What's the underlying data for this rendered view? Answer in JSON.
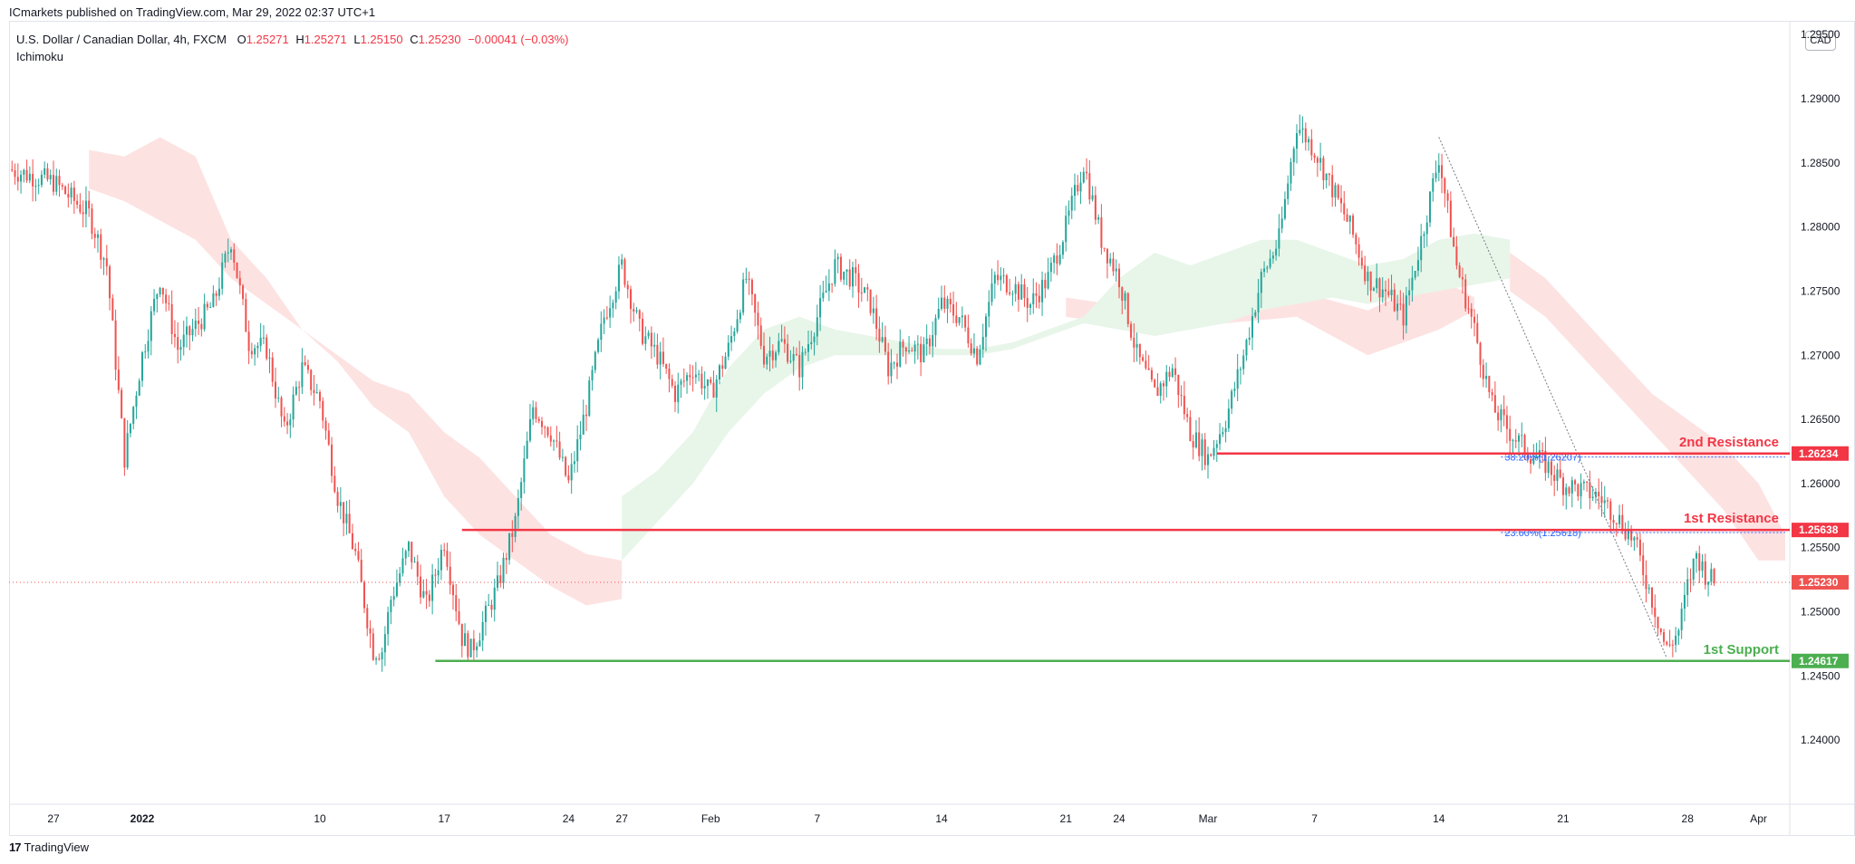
{
  "header": {
    "publisher": "ICmarkets published on TradingView.com, Mar 29, 2022 02:37 UTC+1",
    "symbol": "U.S. Dollar / Canadian Dollar, 4h, FXCM",
    "open_label": "O",
    "open": "1.25271",
    "high_label": "H",
    "high": "1.25271",
    "low_label": "L",
    "low": "1.25150",
    "close_label": "C",
    "close": "1.25230",
    "change": "−0.00041 (−0.03%)",
    "indicator": "Ichimoku",
    "currency": "CAD"
  },
  "footer": {
    "brand": "TradingView",
    "logo_glyph": "17"
  },
  "colors": {
    "bull": "#26a69a",
    "bear": "#ef5350",
    "resistance": "#f23645",
    "support": "#4caf50",
    "fib": "#2962ff",
    "cloud_bear": "#fde2e2",
    "cloud_bull": "#e8f5e9"
  },
  "chart_data": {
    "type": "candlestick",
    "title": "U.S. Dollar / Canadian Dollar, 4h, FXCM",
    "ylim": [
      1.235,
      1.296
    ],
    "y_ticks": [
      "1.24000",
      "1.24500",
      "1.25000",
      "1.25500",
      "1.26000",
      "1.26500",
      "1.27000",
      "1.27500",
      "1.28000",
      "1.28500",
      "1.29000",
      "1.29500"
    ],
    "x_ticks": [
      {
        "label": "27",
        "day": -8
      },
      {
        "label": "2022",
        "day": -3
      },
      {
        "label": "10",
        "day": 7
      },
      {
        "label": "17",
        "day": 14
      },
      {
        "label": "24",
        "day": 21
      },
      {
        "label": "27",
        "day": 24
      },
      {
        "label": "Feb",
        "day": 29
      },
      {
        "label": "7",
        "day": 35
      },
      {
        "label": "14",
        "day": 42
      },
      {
        "label": "21",
        "day": 49
      },
      {
        "label": "24",
        "day": 52
      },
      {
        "label": "Mar",
        "day": 57
      },
      {
        "label": "7",
        "day": 63
      },
      {
        "label": "14",
        "day": 70
      },
      {
        "label": "21",
        "day": 77
      },
      {
        "label": "28",
        "day": 84
      },
      {
        "label": "Apr",
        "day": 88
      }
    ],
    "x_axis_day_range": [
      -10.5,
      89.5
    ],
    "price_path_keypoints": [
      [
        -10.5,
        1.2845
      ],
      [
        -8,
        1.2835
      ],
      [
        -6,
        1.281
      ],
      [
        -5,
        1.277
      ],
      [
        -4,
        1.262
      ],
      [
        -3,
        1.27
      ],
      [
        -2,
        1.276
      ],
      [
        -1,
        1.2705
      ],
      [
        1,
        1.274
      ],
      [
        2,
        1.279
      ],
      [
        3,
        1.271
      ],
      [
        4,
        1.2705
      ],
      [
        5,
        1.264
      ],
      [
        6,
        1.269
      ],
      [
        7,
        1.2665
      ],
      [
        8,
        1.259
      ],
      [
        9,
        1.2545
      ],
      [
        10,
        1.247
      ],
      [
        10.5,
        1.247
      ],
      [
        11,
        1.251
      ],
      [
        12,
        1.255
      ],
      [
        13,
        1.2505
      ],
      [
        14,
        1.2555
      ],
      [
        15,
        1.248
      ],
      [
        15.5,
        1.247
      ],
      [
        16,
        1.2485
      ],
      [
        17,
        1.252
      ],
      [
        18,
        1.257
      ],
      [
        19,
        1.266
      ],
      [
        20,
        1.264
      ],
      [
        21,
        1.26
      ],
      [
        22,
        1.266
      ],
      [
        23,
        1.273
      ],
      [
        24,
        1.277
      ],
      [
        25,
        1.272
      ],
      [
        26,
        1.27
      ],
      [
        27,
        1.267
      ],
      [
        28,
        1.269
      ],
      [
        29,
        1.267
      ],
      [
        30,
        1.2705
      ],
      [
        31,
        1.276
      ],
      [
        32,
        1.27
      ],
      [
        33,
        1.271
      ],
      [
        34,
        1.269
      ],
      [
        35,
        1.273
      ],
      [
        36,
        1.277
      ],
      [
        37,
        1.276
      ],
      [
        38,
        1.274
      ],
      [
        39,
        1.269
      ],
      [
        40,
        1.271
      ],
      [
        41,
        1.27
      ],
      [
        42,
        1.274
      ],
      [
        43,
        1.273
      ],
      [
        44,
        1.27
      ],
      [
        45,
        1.276
      ],
      [
        46,
        1.2755
      ],
      [
        47,
        1.274
      ],
      [
        48,
        1.276
      ],
      [
        49,
        1.28
      ],
      [
        50,
        1.285
      ],
      [
        51,
        1.279
      ],
      [
        52,
        1.276
      ],
      [
        53,
        1.27
      ],
      [
        54,
        1.267
      ],
      [
        55,
        1.269
      ],
      [
        56,
        1.264
      ],
      [
        57,
        1.262
      ],
      [
        58,
        1.265
      ],
      [
        59,
        1.27
      ],
      [
        60,
        1.276
      ],
      [
        61,
        1.279
      ],
      [
        62,
        1.288
      ],
      [
        63,
        1.286
      ],
      [
        64,
        1.283
      ],
      [
        65,
        1.28
      ],
      [
        66,
        1.276
      ],
      [
        67,
        1.275
      ],
      [
        68,
        1.273
      ],
      [
        69,
        1.279
      ],
      [
        70,
        1.2855
      ],
      [
        71,
        1.277
      ],
      [
        72,
        1.272
      ],
      [
        73,
        1.266
      ],
      [
        74,
        1.264
      ],
      [
        75,
        1.2625
      ],
      [
        76,
        1.2615
      ],
      [
        77,
        1.26
      ],
      [
        78,
        1.2595
      ],
      [
        79,
        1.259
      ],
      [
        80,
        1.2575
      ],
      [
        81,
        1.2555
      ],
      [
        82,
        1.251
      ],
      [
        82.8,
        1.247
      ],
      [
        83.5,
        1.2485
      ],
      [
        84,
        1.252
      ],
      [
        84.5,
        1.2545
      ],
      [
        85,
        1.253
      ],
      [
        85.5,
        1.2523
      ]
    ],
    "ichimoku_cloud": {
      "bear_segments": [
        [
          [
            -6,
            1.286
          ],
          [
            -4,
            1.2855
          ],
          [
            -2,
            1.287
          ],
          [
            0,
            1.2855
          ],
          [
            2,
            1.279
          ],
          [
            4,
            1.276
          ],
          [
            6,
            1.272
          ],
          [
            8,
            1.27
          ],
          [
            10,
            1.268
          ],
          [
            12,
            1.267
          ],
          [
            14,
            1.264
          ],
          [
            16,
            1.262
          ],
          [
            18,
            1.259
          ],
          [
            20,
            1.256
          ],
          [
            22,
            1.2545
          ],
          [
            24,
            1.254
          ]
        ],
        [
          [
            -6,
            1.283
          ],
          [
            -4,
            1.282
          ],
          [
            -2,
            1.2805
          ],
          [
            0,
            1.279
          ],
          [
            2,
            1.276
          ],
          [
            4,
            1.274
          ],
          [
            6,
            1.272
          ],
          [
            8,
            1.2695
          ],
          [
            10,
            1.266
          ],
          [
            12,
            1.264
          ],
          [
            14,
            1.259
          ],
          [
            16,
            1.256
          ],
          [
            18,
            1.254
          ],
          [
            20,
            1.252
          ],
          [
            22,
            1.2505
          ],
          [
            24,
            1.251
          ]
        ],
        [
          [
            49,
            1.2745
          ],
          [
            54,
            1.2735
          ],
          [
            58,
            1.2745
          ],
          [
            62,
            1.275
          ],
          [
            66,
            1.2735
          ],
          [
            70,
            1.276
          ],
          [
            72,
            1.2745
          ]
        ],
        [
          [
            49,
            1.273
          ],
          [
            54,
            1.272
          ],
          [
            58,
            1.2725
          ],
          [
            62,
            1.273
          ],
          [
            66,
            1.27
          ],
          [
            70,
            1.272
          ],
          [
            72,
            1.2735
          ]
        ],
        [
          [
            74,
            1.278
          ],
          [
            76,
            1.276
          ],
          [
            78,
            1.273
          ],
          [
            80,
            1.27
          ],
          [
            82,
            1.267
          ],
          [
            84,
            1.265
          ],
          [
            86,
            1.263
          ],
          [
            88,
            1.26
          ],
          [
            89.5,
            1.256
          ]
        ],
        [
          [
            74,
            1.275
          ],
          [
            76,
            1.273
          ],
          [
            78,
            1.27
          ],
          [
            80,
            1.267
          ],
          [
            82,
            1.264
          ],
          [
            84,
            1.261
          ],
          [
            86,
            1.258
          ],
          [
            88,
            1.254
          ],
          [
            89.5,
            1.254
          ]
        ]
      ],
      "bull_segments": [
        [
          [
            24,
            1.259
          ],
          [
            26,
            1.261
          ],
          [
            28,
            1.264
          ],
          [
            30,
            1.269
          ],
          [
            32,
            1.272
          ],
          [
            34,
            1.273
          ],
          [
            36,
            1.272
          ],
          [
            38,
            1.2715
          ],
          [
            40,
            1.271
          ],
          [
            42,
            1.2705
          ],
          [
            44,
            1.2705
          ],
          [
            46,
            1.271
          ],
          [
            48,
            1.272
          ],
          [
            50,
            1.273
          ],
          [
            52,
            1.276
          ],
          [
            54,
            1.278
          ],
          [
            56,
            1.277
          ],
          [
            58,
            1.278
          ],
          [
            60,
            1.279
          ],
          [
            62,
            1.279
          ],
          [
            64,
            1.278
          ],
          [
            66,
            1.277
          ],
          [
            68,
            1.2775
          ],
          [
            70,
            1.279
          ],
          [
            72,
            1.2795
          ],
          [
            74,
            1.279
          ]
        ],
        [
          [
            24,
            1.254
          ],
          [
            26,
            1.257
          ],
          [
            28,
            1.26
          ],
          [
            30,
            1.264
          ],
          [
            32,
            1.267
          ],
          [
            34,
            1.269
          ],
          [
            36,
            1.27
          ],
          [
            38,
            1.27
          ],
          [
            40,
            1.27
          ],
          [
            42,
            1.27
          ],
          [
            44,
            1.27
          ],
          [
            46,
            1.2705
          ],
          [
            48,
            1.2715
          ],
          [
            50,
            1.2725
          ],
          [
            52,
            1.272
          ],
          [
            54,
            1.2715
          ],
          [
            56,
            1.272
          ],
          [
            58,
            1.2725
          ],
          [
            60,
            1.2735
          ],
          [
            62,
            1.274
          ],
          [
            64,
            1.2745
          ],
          [
            66,
            1.274
          ],
          [
            68,
            1.2745
          ],
          [
            70,
            1.275
          ],
          [
            72,
            1.2755
          ],
          [
            74,
            1.276
          ]
        ]
      ]
    },
    "horizontal_levels": [
      {
        "name": "2nd Resistance",
        "value": 1.26234,
        "label": "1.26234",
        "kind": "resistance",
        "x_start": 57.5
      },
      {
        "name": "1st Resistance",
        "value": 1.25638,
        "label": "1.25638",
        "kind": "resistance",
        "x_start": 15
      },
      {
        "name": "1st Support",
        "value": 1.24617,
        "label": "1.24617",
        "kind": "support",
        "x_start": 13.5
      }
    ],
    "fib_levels": [
      {
        "label": "38.20%(1.26207)",
        "value": 1.26207,
        "x_start": 73.5
      },
      {
        "label": "23.60%(1.25618)",
        "value": 1.25618,
        "x_start": 73.5
      }
    ],
    "trendline": {
      "from": [
        70,
        1.287
      ],
      "to": [
        82.8,
        1.2465
      ]
    },
    "current_price": {
      "value": 1.2523,
      "label": "1.25230"
    }
  }
}
